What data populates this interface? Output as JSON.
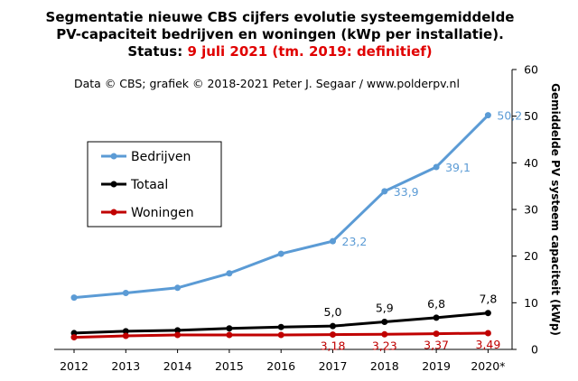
{
  "chart_data": {
    "type": "line",
    "title_line1": "Segmentatie nieuwe CBS cijfers evolutie systeemgemiddelde",
    "title_line2": "PV-capaciteit bedrijven en woningen (kWp per installatie).",
    "status_label": "Status:",
    "status_value": "9 juli 2021 (tm. 2019: definitief)",
    "credit": "Data © CBS;  grafiek © 2018-2021  Peter J. Segaar / www.polderpv.nl",
    "ylabel": "Gemiddelde PV systeem capaciteit (kWp)",
    "xlabel": "",
    "categories": [
      "2012",
      "2013",
      "2014",
      "2015",
      "2016",
      "2017",
      "2018",
      "2019",
      "2020*"
    ],
    "ylim": [
      0,
      60
    ],
    "yticks": [
      "0",
      "10",
      "20",
      "30",
      "40",
      "50",
      "60"
    ],
    "y_axis_side": "right",
    "grid": false,
    "legend_position": "left-middle",
    "series": [
      {
        "name": "Bedrijven",
        "color": "#5b9bd5",
        "values": [
          11.1,
          12.1,
          13.2,
          16.3,
          20.5,
          23.2,
          33.9,
          39.1,
          50.2
        ],
        "labels": [
          "",
          "",
          "",
          "",
          "",
          "23,2",
          "33,9",
          "39,1",
          "50,2"
        ]
      },
      {
        "name": "Totaal",
        "color": "#000000",
        "values": [
          3.5,
          3.9,
          4.1,
          4.5,
          4.8,
          5.0,
          5.9,
          6.8,
          7.8
        ],
        "labels": [
          "",
          "",
          "",
          "",
          "",
          "5,0",
          "5,9",
          "6,8",
          "7,8"
        ]
      },
      {
        "name": "Woningen",
        "color": "#c00000",
        "values": [
          2.6,
          2.9,
          3.1,
          3.1,
          3.1,
          3.18,
          3.23,
          3.37,
          3.49
        ],
        "labels": [
          "",
          "",
          "",
          "",
          "",
          "3,18",
          "3,23",
          "3,37",
          "3,49"
        ]
      }
    ]
  }
}
